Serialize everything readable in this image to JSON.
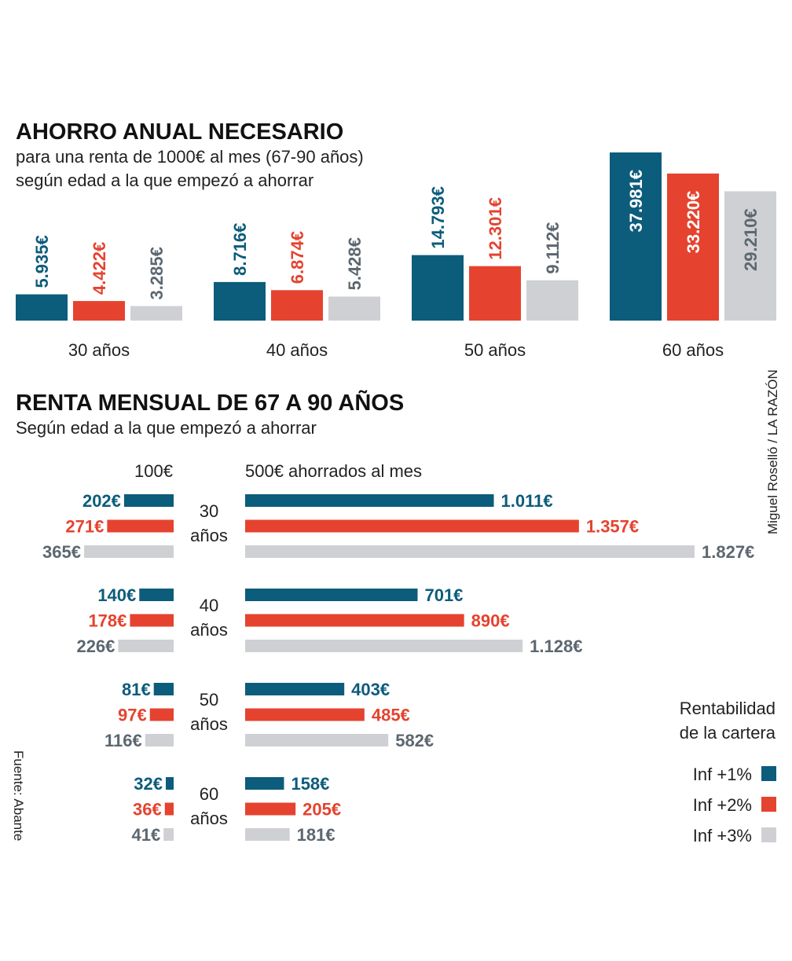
{
  "colors": {
    "inf1": "#0c5c7b",
    "inf2": "#e5432f",
    "inf3": "#cfd0d4",
    "inf3_text": "#5c6770"
  },
  "credit": "Miguel Roselló / LA RAZÓN",
  "source": "Fuente: Abante",
  "legend": {
    "title_line1": "Rentabilidad",
    "title_line2": "de la cartera",
    "items": [
      "Inf +1%",
      "Inf +2%",
      "Inf +3%"
    ]
  },
  "chart_data": [
    {
      "type": "bar",
      "title": "AHORRO ANUAL NECESARIO",
      "subtitle_line1": "para una renta de 1000€ al mes (67-90 años)",
      "subtitle_line2": "según edad a la que empezó a ahorrar",
      "categories": [
        "30 años",
        "40 años",
        "50 años",
        "60 años"
      ],
      "series": [
        {
          "name": "Inf +1%",
          "values": [
            5935,
            8716,
            14793,
            37981
          ],
          "labels": [
            "5.935€",
            "8.716€",
            "14.793€",
            "37.981€"
          ]
        },
        {
          "name": "Inf +2%",
          "values": [
            4422,
            6874,
            12301,
            33220
          ],
          "labels": [
            "4.422€",
            "6.874€",
            "12.301€",
            "33.220€"
          ]
        },
        {
          "name": "Inf +3%",
          "values": [
            3285,
            5428,
            9112,
            29210
          ],
          "labels": [
            "3.285€",
            "5.428€",
            "9.112€",
            "29.210€"
          ]
        }
      ]
    },
    {
      "type": "bar",
      "title": "RENTA MENSUAL DE 67 A 90 AÑOS",
      "subtitle": "Según edad a la que empezó a ahorrar",
      "categories": [
        {
          "line1": "30",
          "line2": "años"
        },
        {
          "line1": "40",
          "line2": "años"
        },
        {
          "line1": "50",
          "line2": "años"
        },
        {
          "line1": "60",
          "line2": "años"
        }
      ],
      "left_header": "100€",
      "right_header": "500€ ahorrados al mes",
      "left_series": [
        {
          "name": "Inf +1%",
          "values": [
            202,
            140,
            81,
            32
          ],
          "labels": [
            "202€",
            "140€",
            "81€",
            "32€"
          ]
        },
        {
          "name": "Inf +2%",
          "values": [
            271,
            178,
            97,
            36
          ],
          "labels": [
            "271€",
            "178€",
            "97€",
            "36€"
          ]
        },
        {
          "name": "Inf +3%",
          "values": [
            365,
            226,
            116,
            41
          ],
          "labels": [
            "365€",
            "226€",
            "116€",
            "41€"
          ]
        }
      ],
      "right_series": [
        {
          "name": "Inf +1%",
          "values": [
            1011,
            701,
            403,
            158
          ],
          "labels": [
            "1.011€",
            "701€",
            "403€",
            "158€"
          ]
        },
        {
          "name": "Inf +2%",
          "values": [
            1357,
            890,
            485,
            205
          ],
          "labels": [
            "1.357€",
            "890€",
            "485€",
            "205€"
          ]
        },
        {
          "name": "Inf +3%",
          "values": [
            1827,
            1128,
            582,
            181
          ],
          "labels": [
            "1.827€",
            "1.128€",
            "582€",
            "181€"
          ]
        }
      ]
    }
  ]
}
